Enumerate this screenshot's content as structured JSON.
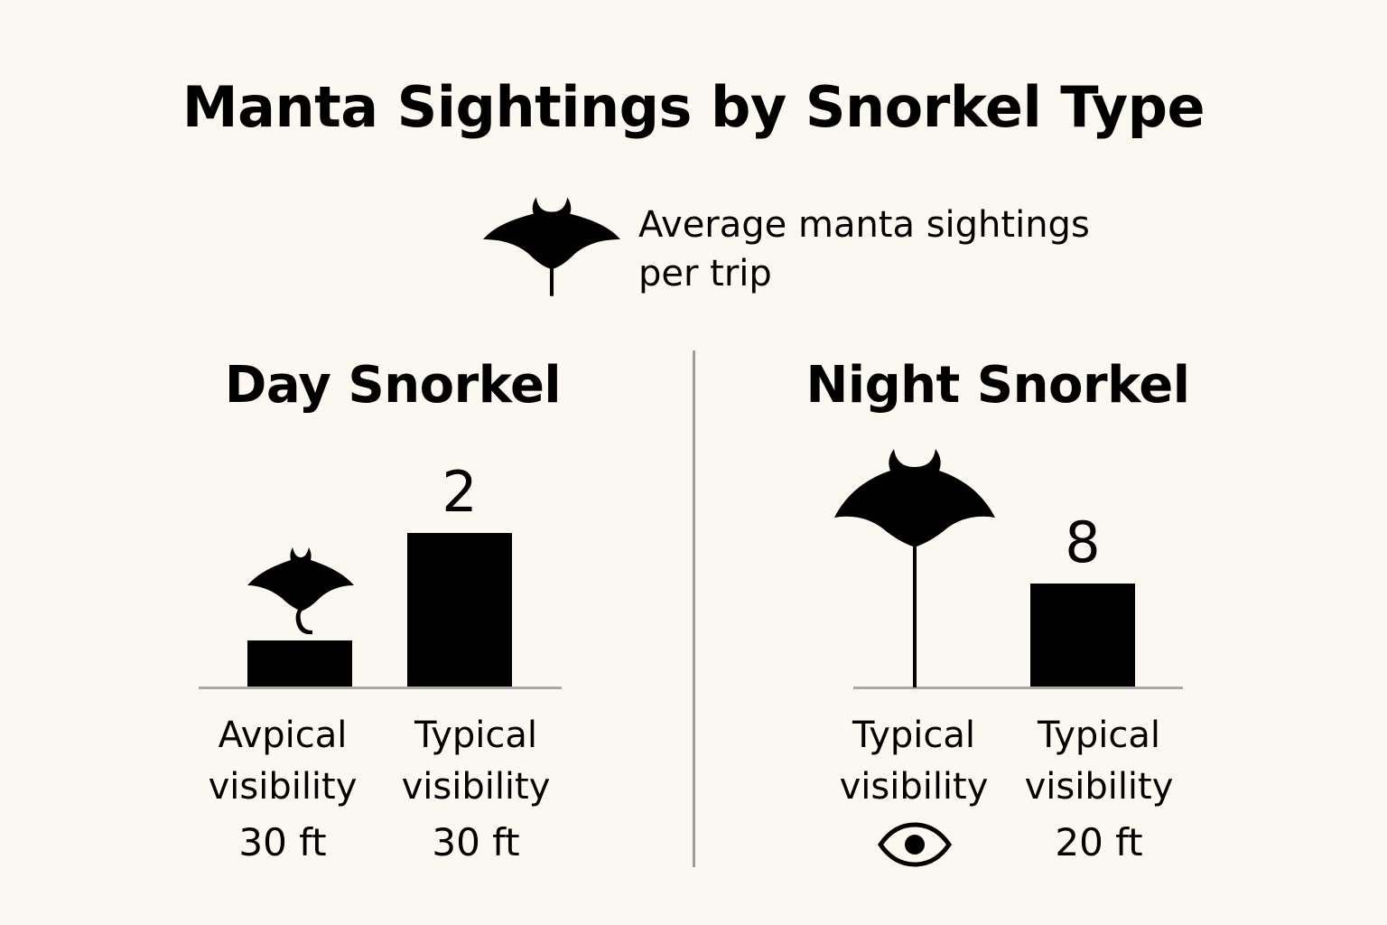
{
  "chart_data": {
    "type": "bar",
    "title": "Manta Sightings by Snorkel Type",
    "legend": {
      "icon": "manta-ray-icon",
      "line1": "Average manta sightings",
      "line2": "per trip",
      "placement": "top-center"
    },
    "panels": [
      {
        "name": "Day Snorkel",
        "categories": [
          {
            "line1": "Avpical",
            "line2": "visibility",
            "line3": "30 ft",
            "value": null,
            "bar_estimate": 0.6,
            "value_label": "",
            "icon": "manta-ray-icon"
          },
          {
            "line1": "Typical",
            "line2": "visibility",
            "line3": "30 ft",
            "value": 2,
            "bar_estimate": 2,
            "value_label": "2",
            "icon": ""
          }
        ]
      },
      {
        "name": "Night Snorkel",
        "categories": [
          {
            "line1": "Typical",
            "line2": "visibility",
            "line3": "",
            "value": null,
            "bar_estimate": 0,
            "value_label": "",
            "icon": "manta-ray-icon",
            "footer_icon": "eye-icon"
          },
          {
            "line1": "Typical",
            "line2": "visibility",
            "line3": "20 ft",
            "value": 8,
            "bar_estimate": 1.5,
            "value_label": "8",
            "icon": ""
          }
        ]
      }
    ],
    "colors": {
      "bar": "#000000",
      "background": "#FBF8F2",
      "axis": "#A8A8A8"
    },
    "grid": false
  }
}
